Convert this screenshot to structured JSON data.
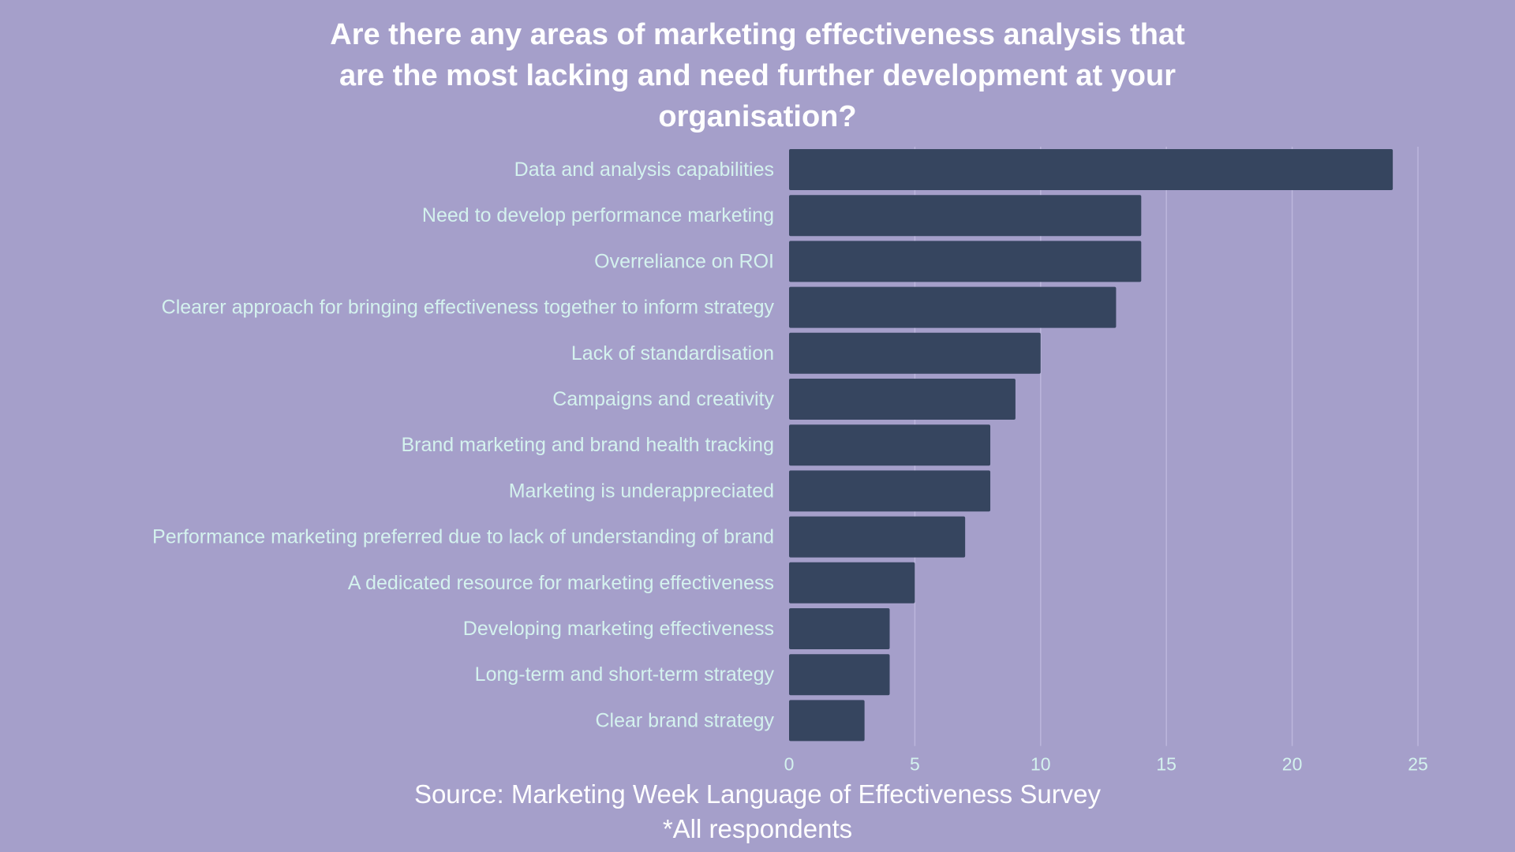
{
  "chart_data": {
    "type": "bar",
    "orientation": "horizontal",
    "title_lines": [
      "Are there any areas of marketing effectiveness analysis that",
      "are the most lacking and need further development at your",
      "organisation?"
    ],
    "categories": [
      "Data and analysis capabilities",
      "Need to develop performance marketing",
      "Overreliance on ROI",
      "Clearer approach for bringing effectiveness together to inform strategy",
      "Lack of standardisation",
      "Campaigns and creativity",
      "Brand marketing and brand health tracking",
      "Marketing is underappreciated",
      "Performance marketing preferred due to lack of understanding of brand",
      "A dedicated resource for marketing effectiveness",
      "Developing marketing effectiveness",
      "Long-term and short-term strategy",
      "Clear brand strategy"
    ],
    "values": [
      24,
      14,
      14,
      13,
      10,
      9,
      8,
      8,
      7,
      5,
      4,
      4,
      3
    ],
    "xlim": [
      0,
      25
    ],
    "xticks": [
      "0",
      "5",
      "10",
      "15",
      "20",
      "25"
    ],
    "grid": "vertical",
    "xlabel": "",
    "ylabel": "",
    "colors": {
      "background": "#a59fca",
      "bar": "#36455f",
      "category_label": "#d4f2ee",
      "tick_label": "#d4f2ee",
      "gridline": "#bcb6dc",
      "title": "#ffffff",
      "footer": "#ffffff"
    }
  },
  "footer": {
    "source": "Source: Marketing Week Language of Effectiveness Survey",
    "note": "*All respondents"
  }
}
